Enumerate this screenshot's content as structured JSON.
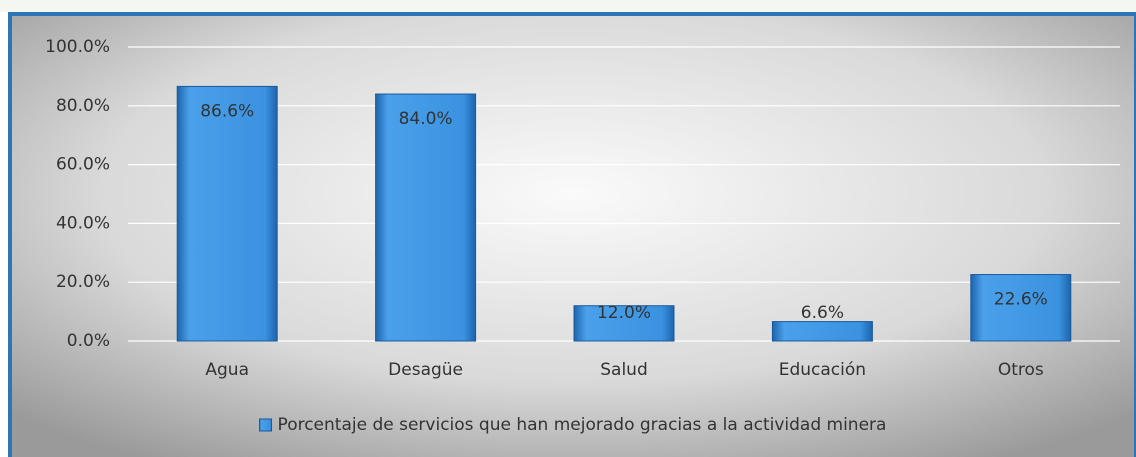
{
  "chart_data": {
    "type": "bar",
    "categories": [
      "Agua",
      "Desagüe",
      "Salud",
      "Educación",
      "Otros"
    ],
    "series": [
      {
        "name": "Porcentaje de servicios que han mejorado gracias a la actividad minera",
        "color": "#2f86d6",
        "values": [
          86.6,
          84.0,
          12.0,
          6.6,
          22.6
        ],
        "value_labels": [
          "86.6%",
          "84.0%",
          "12.0%",
          "6.6%",
          "22.6%"
        ]
      }
    ],
    "ylim": [
      0,
      100
    ],
    "yticks": [
      {
        "value": 0,
        "label": "0.0%"
      },
      {
        "value": 20,
        "label": "20.0%"
      },
      {
        "value": 40,
        "label": "40.0%"
      },
      {
        "value": 60,
        "label": "60.0%"
      },
      {
        "value": 80,
        "label": "80.0%"
      },
      {
        "value": 100,
        "label": "100.0%"
      }
    ],
    "grid": true,
    "legend": "bottom"
  }
}
